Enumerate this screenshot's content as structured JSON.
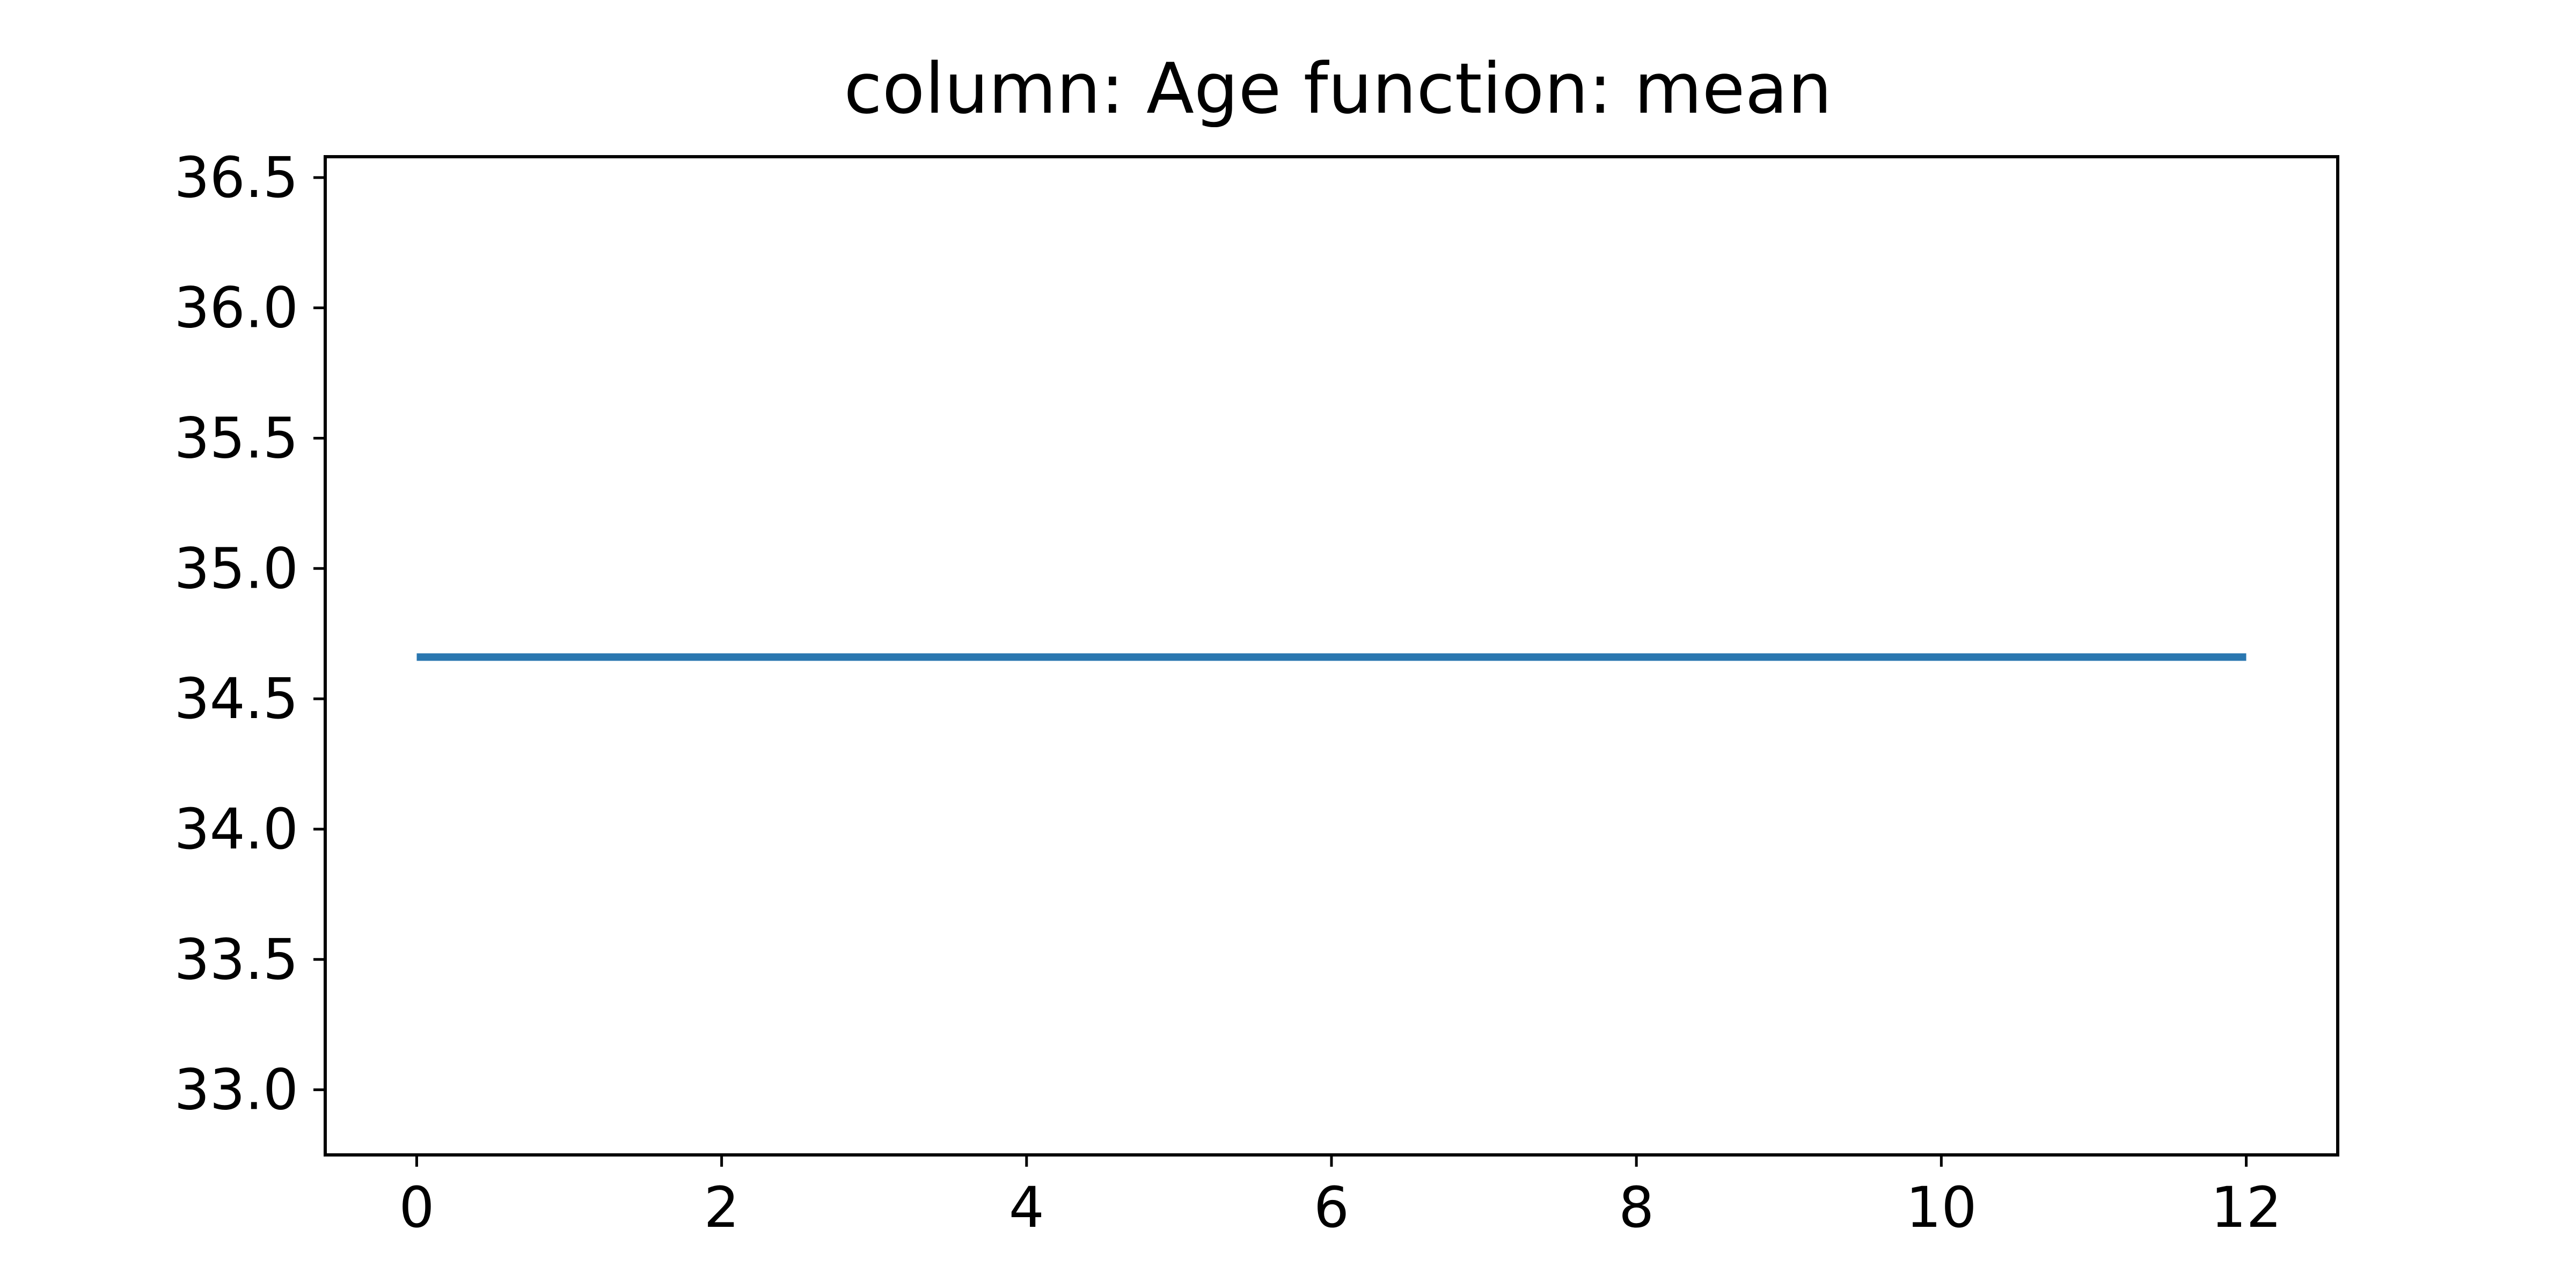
{
  "chart_data": {
    "type": "line",
    "title": "column: Age function: mean",
    "xlabel": "",
    "ylabel": "",
    "xlim": [
      -0.6,
      12.6
    ],
    "ylim": [
      32.75,
      36.58
    ],
    "xticks": [
      0,
      2,
      4,
      6,
      8,
      10,
      12
    ],
    "xtick_labels": [
      "0",
      "2",
      "4",
      "6",
      "8",
      "10",
      "12"
    ],
    "yticks": [
      33.0,
      33.5,
      34.0,
      34.5,
      35.0,
      35.5,
      36.0,
      36.5
    ],
    "ytick_labels": [
      "33.0",
      "33.5",
      "34.0",
      "34.5",
      "35.0",
      "35.5",
      "36.0",
      "36.5"
    ],
    "grid": false,
    "legend": false,
    "series": [
      {
        "color": "#2a77b0",
        "x": [
          0,
          1,
          2,
          3,
          4,
          5,
          6,
          7,
          8,
          9,
          10,
          11,
          12
        ],
        "y": [
          34.66,
          34.66,
          34.66,
          34.66,
          34.66,
          34.66,
          34.66,
          34.66,
          34.66,
          34.66,
          34.66,
          34.66,
          34.66
        ]
      }
    ]
  }
}
